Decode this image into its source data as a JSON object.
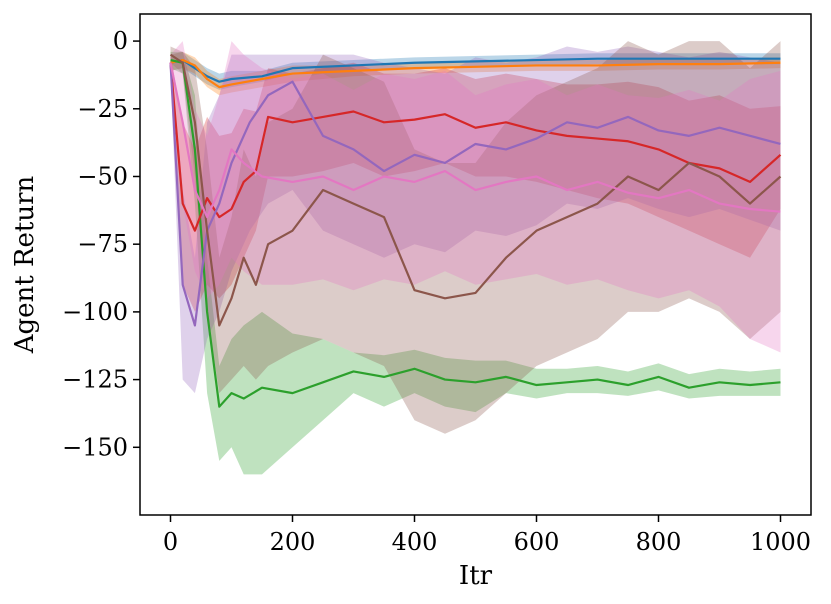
{
  "chart_data": {
    "type": "line",
    "title": "",
    "xlabel": "Itr",
    "ylabel": "Agent Return",
    "xlim": [
      -50,
      1050
    ],
    "ylim": [
      -175,
      10
    ],
    "xticks": [
      0,
      200,
      400,
      600,
      800,
      1000
    ],
    "yticks": [
      0,
      -25,
      -50,
      -75,
      -100,
      -125,
      -150
    ],
    "xtick_labels": [
      "0",
      "200",
      "400",
      "600",
      "800",
      "1000"
    ],
    "ytick_labels": [
      "0",
      "−25",
      "−50",
      "−75",
      "−100",
      "−125",
      "−150"
    ],
    "grid": false,
    "legend": false,
    "series": [
      {
        "color": "#1f77b4",
        "x": [
          0,
          20,
          40,
          60,
          80,
          100,
          150,
          200,
          300,
          400,
          500,
          600,
          700,
          800,
          900,
          1000
        ],
        "mean": [
          -8,
          -7,
          -10,
          -13,
          -15,
          -14,
          -13,
          -10,
          -9,
          -8,
          -7.5,
          -7,
          -6.5,
          -6.5,
          -6.5,
          -6.5
        ],
        "lower": [
          -11,
          -10,
          -13,
          -16,
          -18,
          -17,
          -15,
          -12,
          -11,
          -10,
          -9.5,
          -9,
          -8.5,
          -8.5,
          -8.5,
          -8.5
        ],
        "upper": [
          -5,
          -4,
          -7,
          -10,
          -12,
          -11,
          -11,
          -8,
          -7,
          -6,
          -5.5,
          -5,
          -4.5,
          -4.5,
          -4.5,
          -4.5
        ]
      },
      {
        "color": "#ff7f0e",
        "x": [
          0,
          20,
          40,
          60,
          80,
          100,
          150,
          200,
          300,
          400,
          500,
          600,
          700,
          800,
          900,
          1000
        ],
        "mean": [
          -8,
          -7,
          -9,
          -14,
          -17,
          -16,
          -14,
          -12,
          -11,
          -10,
          -9.5,
          -9,
          -9,
          -8.5,
          -8.5,
          -8
        ],
        "lower": [
          -11,
          -10,
          -12,
          -17,
          -20,
          -19,
          -17,
          -15,
          -13,
          -12,
          -11.5,
          -11,
          -11,
          -10.5,
          -10.5,
          -10
        ],
        "upper": [
          -5,
          -4,
          -6,
          -11,
          -14,
          -13,
          -11,
          -9,
          -9,
          -8,
          -7.5,
          -7,
          -7,
          -6.5,
          -6.5,
          -6
        ]
      },
      {
        "color": "#2ca02c",
        "x": [
          0,
          20,
          40,
          60,
          80,
          100,
          120,
          150,
          200,
          250,
          300,
          350,
          400,
          450,
          500,
          550,
          600,
          650,
          700,
          750,
          800,
          850,
          900,
          950,
          1000
        ],
        "mean": [
          -7,
          -8,
          -40,
          -100,
          -135,
          -130,
          -132,
          -128,
          -130,
          -126,
          -122,
          -124,
          -121,
          -125,
          -126,
          -124,
          -127,
          -126,
          -125,
          -127,
          -124,
          -128,
          -126,
          -127,
          -126
        ],
        "lower": [
          -10,
          -12,
          -60,
          -130,
          -155,
          -150,
          -160,
          -160,
          -150,
          -140,
          -130,
          -135,
          -130,
          -135,
          -137,
          -130,
          -132,
          -130,
          -130,
          -131,
          -129,
          -132,
          -131,
          -131,
          -131
        ],
        "upper": [
          -4,
          -4,
          -20,
          -80,
          -120,
          -110,
          -105,
          -100,
          -108,
          -110,
          -115,
          -116,
          -114,
          -117,
          -118,
          -118,
          -121,
          -121,
          -120,
          -122,
          -119,
          -123,
          -121,
          -122,
          -121
        ]
      },
      {
        "color": "#d62728",
        "x": [
          0,
          20,
          40,
          60,
          80,
          100,
          120,
          140,
          160,
          200,
          250,
          300,
          350,
          400,
          450,
          500,
          550,
          600,
          650,
          700,
          750,
          800,
          850,
          900,
          950,
          1000
        ],
        "mean": [
          -8,
          -60,
          -70,
          -58,
          -65,
          -62,
          -52,
          -48,
          -28,
          -30,
          -28,
          -26,
          -30,
          -29,
          -27,
          -32,
          -30,
          -33,
          -35,
          -36,
          -37,
          -40,
          -45,
          -47,
          -52,
          -42
        ],
        "lower": [
          -11,
          -90,
          -100,
          -90,
          -95,
          -90,
          -80,
          -70,
          -50,
          -50,
          -48,
          -45,
          -50,
          -48,
          -45,
          -50,
          -50,
          -52,
          -55,
          -58,
          -60,
          -65,
          -70,
          -75,
          -80,
          -62
        ],
        "upper": [
          -5,
          -30,
          -40,
          -28,
          -35,
          -34,
          -25,
          -26,
          -10,
          -12,
          -10,
          -8,
          -12,
          -12,
          -10,
          -14,
          -12,
          -14,
          -16,
          -16,
          -15,
          -17,
          -22,
          -20,
          -25,
          -24
        ]
      },
      {
        "color": "#9467bd",
        "x": [
          0,
          20,
          40,
          60,
          80,
          100,
          130,
          160,
          200,
          250,
          300,
          350,
          400,
          450,
          500,
          550,
          600,
          650,
          700,
          750,
          800,
          850,
          900,
          950,
          1000
        ],
        "mean": [
          -8,
          -90,
          -105,
          -70,
          -60,
          -45,
          -30,
          -20,
          -15,
          -35,
          -40,
          -48,
          -42,
          -45,
          -38,
          -40,
          -36,
          -30,
          -32,
          -28,
          -33,
          -35,
          -32,
          -35,
          -38
        ],
        "lower": [
          -11,
          -125,
          -130,
          -110,
          -100,
          -85,
          -70,
          -60,
          -55,
          -70,
          -75,
          -80,
          -75,
          -78,
          -70,
          -72,
          -68,
          -60,
          -62,
          -58,
          -62,
          -65,
          -62,
          -66,
          -70
        ],
        "upper": [
          -5,
          -55,
          -80,
          -30,
          -20,
          -5,
          -5,
          -5,
          -5,
          -5,
          -5,
          -8,
          -10,
          -12,
          -6,
          -8,
          -6,
          -2,
          -4,
          -2,
          -4,
          -6,
          -4,
          -6,
          -8
        ]
      },
      {
        "color": "#8c564b",
        "x": [
          0,
          20,
          40,
          60,
          80,
          100,
          120,
          140,
          160,
          200,
          250,
          300,
          350,
          400,
          450,
          500,
          550,
          600,
          650,
          700,
          750,
          800,
          850,
          900,
          950,
          1000
        ],
        "mean": [
          -5,
          -8,
          -30,
          -70,
          -105,
          -95,
          -80,
          -90,
          -75,
          -70,
          -55,
          -60,
          -65,
          -92,
          -95,
          -93,
          -80,
          -70,
          -65,
          -60,
          -50,
          -55,
          -45,
          -50,
          -60,
          -50
        ],
        "lower": [
          -8,
          -12,
          -50,
          -100,
          -130,
          -125,
          -120,
          -125,
          -120,
          -115,
          -110,
          -115,
          -120,
          -140,
          -145,
          -140,
          -130,
          -120,
          -115,
          -110,
          -100,
          -100,
          -95,
          -100,
          -110,
          -100
        ],
        "upper": [
          -2,
          -4,
          -10,
          -40,
          -80,
          -65,
          -40,
          -50,
          -30,
          -25,
          -5,
          -10,
          -15,
          -40,
          -45,
          -45,
          -30,
          -20,
          -15,
          -10,
          0,
          -5,
          0,
          0,
          -10,
          0
        ]
      },
      {
        "color": "#e377c2",
        "x": [
          0,
          20,
          40,
          60,
          80,
          100,
          120,
          150,
          200,
          250,
          300,
          350,
          400,
          450,
          500,
          550,
          600,
          650,
          700,
          750,
          800,
          850,
          900,
          950,
          1000
        ],
        "mean": [
          -8,
          -30,
          -55,
          -65,
          -55,
          -40,
          -45,
          -50,
          -52,
          -50,
          -55,
          -50,
          -52,
          -48,
          -55,
          -52,
          -50,
          -55,
          -52,
          -56,
          -58,
          -55,
          -60,
          -62,
          -63
        ],
        "lower": [
          -11,
          -60,
          -85,
          -95,
          -90,
          -80,
          -85,
          -90,
          -90,
          -88,
          -92,
          -88,
          -90,
          -85,
          -90,
          -88,
          -86,
          -90,
          -88,
          -92,
          -95,
          -92,
          -98,
          -110,
          -115
        ],
        "upper": [
          -5,
          0,
          -25,
          -35,
          -20,
          0,
          -5,
          -10,
          -14,
          -12,
          -18,
          -12,
          -14,
          -11,
          -20,
          -16,
          -14,
          -20,
          -16,
          -20,
          -21,
          -18,
          -22,
          -14,
          -11
        ]
      }
    ]
  }
}
